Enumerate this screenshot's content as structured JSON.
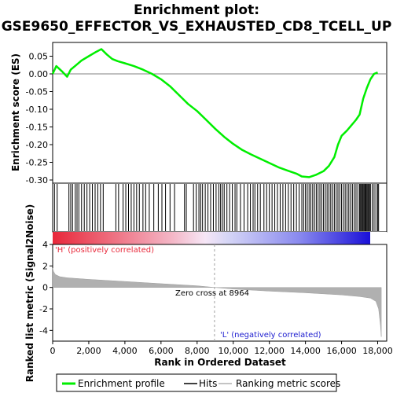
{
  "chart_data": {
    "type": "line",
    "title": "Enrichment plot:",
    "subtitle": "GSE9650_EFFECTOR_VS_EXHAUSTED_CD8_TCELL_UP",
    "colors": {
      "profile": "#00ee00",
      "hits": "#000000",
      "metric": "#b0b0b0",
      "positive": "#ff0000",
      "negative": "#0000ff"
    },
    "enrichment_panel": {
      "ylabel": "Enrichment score (ES)",
      "ylim": [
        -0.3,
        0.08
      ],
      "yticks": [
        "0.05",
        "0.00",
        "-0.05",
        "-0.10",
        "-0.15",
        "-0.20",
        "-0.25",
        "-0.30"
      ],
      "ytick_values": [
        0.05,
        0.0,
        -0.05,
        -0.1,
        -0.15,
        -0.2,
        -0.25,
        -0.3
      ],
      "series": [
        {
          "name": "Enrichment profile",
          "x": [
            0,
            200,
            500,
            800,
            1000,
            1300,
            1600,
            2000,
            2400,
            2700,
            3000,
            3300,
            3600,
            4000,
            4500,
            5000,
            5500,
            6000,
            6500,
            7000,
            7500,
            8000,
            8500,
            9000,
            9500,
            10000,
            10500,
            11000,
            11500,
            12000,
            12500,
            13000,
            13500,
            13800,
            14200,
            14600,
            15000,
            15300,
            15600,
            15800,
            16000,
            16300,
            16500,
            16800,
            17000,
            17200,
            17400,
            17600,
            17800,
            18000
          ],
          "y": [
            0.0,
            0.022,
            0.008,
            -0.008,
            0.012,
            0.025,
            0.038,
            0.05,
            0.062,
            0.07,
            0.055,
            0.042,
            0.036,
            0.03,
            0.022,
            0.012,
            0.0,
            -0.015,
            -0.035,
            -0.06,
            -0.085,
            -0.105,
            -0.13,
            -0.155,
            -0.178,
            -0.198,
            -0.215,
            -0.228,
            -0.24,
            -0.252,
            -0.264,
            -0.273,
            -0.282,
            -0.29,
            -0.292,
            -0.285,
            -0.275,
            -0.26,
            -0.235,
            -0.2,
            -0.175,
            -0.16,
            -0.148,
            -0.13,
            -0.115,
            -0.07,
            -0.04,
            -0.015,
            0.0,
            0.004
          ]
        }
      ]
    },
    "hits_panel": {
      "positions": [
        100,
        250,
        900,
        1000,
        1100,
        1250,
        1350,
        1450,
        1600,
        1750,
        1900,
        2050,
        2200,
        2350,
        2500,
        2650,
        2800,
        3500,
        3650,
        3900,
        4050,
        4200,
        4350,
        4500,
        4650,
        4800,
        5000,
        5150,
        5350,
        5600,
        5850,
        6050,
        6250,
        6500,
        6750,
        7300,
        7400,
        7800,
        7950,
        8100,
        8200,
        8300,
        8450,
        8600,
        8750,
        8900,
        9050,
        9200,
        9300,
        9400,
        9500,
        9650,
        9800,
        9950,
        10100,
        10200,
        10400,
        10600,
        10800,
        10950,
        11100,
        11200,
        11350,
        11500,
        11700,
        11850,
        12000,
        12150,
        12300,
        12450,
        12600,
        12750,
        12900,
        13050,
        13200,
        13350,
        13500,
        13650,
        13800,
        13900,
        14000,
        14100,
        14200,
        14300,
        14400,
        14500,
        14600,
        14700,
        14800,
        14900,
        15000,
        15100,
        15200,
        15300,
        15400,
        15500,
        15600,
        15700,
        15800,
        15900,
        16000,
        16100,
        16200,
        16300,
        16400,
        16500,
        16600,
        16700,
        16800,
        16900,
        17000,
        17050,
        17100,
        17150,
        17200,
        17250,
        17300,
        17350,
        17400,
        17450,
        17500,
        17550,
        17600,
        17700,
        17800,
        17900,
        18000,
        18050
      ]
    },
    "metric_panel": {
      "ylabel": "Ranked list metric (Signal2Noise)",
      "xlabel": "Rank in Ordered Dataset",
      "ylim": [
        -5,
        4
      ],
      "yticks": [
        "4",
        "2",
        "0",
        "-2",
        "-4"
      ],
      "ytick_values": [
        4,
        2,
        0,
        -2,
        -4
      ],
      "xlim": [
        0,
        18500
      ],
      "xticks": [
        "0",
        "2,000",
        "4,000",
        "6,000",
        "8,000",
        "10,000",
        "12,000",
        "14,000",
        "16,000",
        "18,000"
      ],
      "xtick_values": [
        0,
        2000,
        4000,
        6000,
        8000,
        10000,
        12000,
        14000,
        16000,
        18000
      ],
      "profile_x": [
        0,
        50,
        150,
        400,
        800,
        2000,
        4000,
        6000,
        8000,
        8964,
        10000,
        12000,
        14000,
        16000,
        17000,
        17600,
        17900,
        18050,
        18150,
        18200
      ],
      "profile_y": [
        1.8,
        1.5,
        1.2,
        1.0,
        0.9,
        0.75,
        0.55,
        0.35,
        0.15,
        0.0,
        -0.15,
        -0.35,
        -0.5,
        -0.7,
        -0.85,
        -1.0,
        -1.3,
        -2.0,
        -3.5,
        -4.6
      ],
      "zero_cross_rank": 8964,
      "zero_cross_label": "Zero cross at 8964",
      "pos_label": "'H' (positively correlated)",
      "neg_label": "'L' (negatively correlated)"
    },
    "legend": {
      "items": [
        "Enrichment profile",
        "Hits",
        "Ranking metric scores"
      ]
    }
  }
}
